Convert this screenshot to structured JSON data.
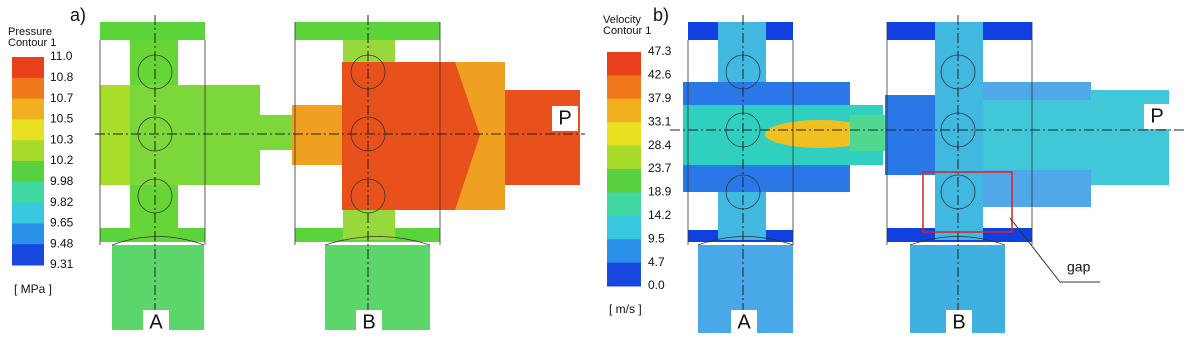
{
  "panels": [
    {
      "label": "a)",
      "legend_title": [
        "Pressure",
        "Contour 1"
      ],
      "ticks": [
        "11.0",
        "10.8",
        "10.7",
        "10.5",
        "10.3",
        "10.2",
        "9.98",
        "9.82",
        "9.65",
        "9.48",
        "9.31"
      ],
      "unit": "[ MPa ]",
      "ports": [
        "A",
        "B",
        "P"
      ]
    },
    {
      "label": "b)",
      "legend_title": [
        "Velocity",
        "Contour 1"
      ],
      "ticks": [
        "47.3",
        "42.6",
        "37.9",
        "33.1",
        "28.4",
        "23.7",
        "18.9",
        "14.2",
        "9.5",
        "4.7",
        "0.0"
      ],
      "unit": "[ m/s ]",
      "ports": [
        "A",
        "B",
        "P"
      ],
      "annotation": "gap"
    }
  ]
}
